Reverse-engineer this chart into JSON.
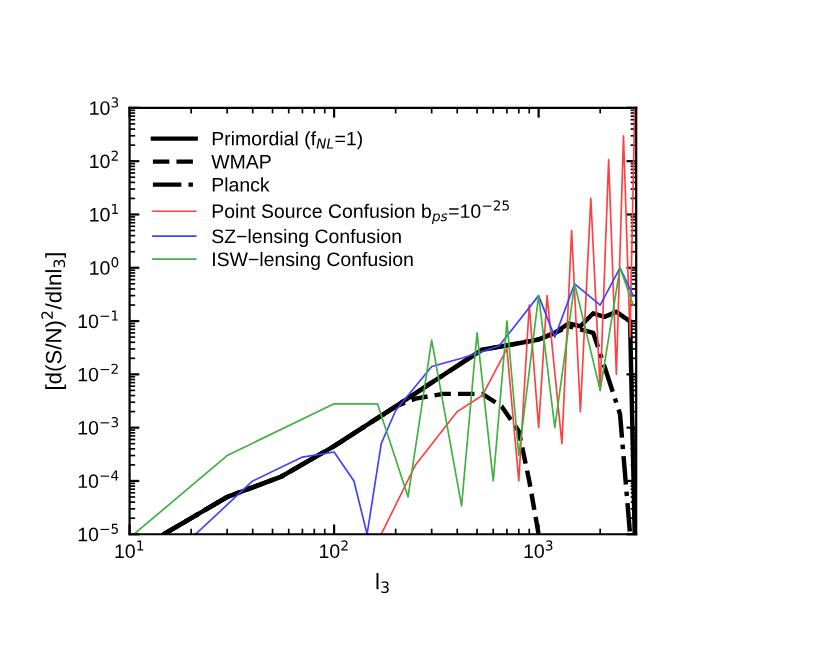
{
  "chart_data": {
    "type": "line",
    "xlabel": "l$_{3}$",
    "ylabel": "[d(S/N)$^{2}$/dlnl$_{3}$]",
    "log": "xy",
    "xlim": [
      10,
      3000
    ],
    "ylim": [
      1e-05,
      1000
    ],
    "xticks": [
      {
        "value": 10,
        "label": "10$^{1}$"
      },
      {
        "value": 100,
        "label": "10$^{2}$"
      },
      {
        "value": 1000,
        "label": "10$^{3}$"
      }
    ],
    "yticks": [
      {
        "value": 1e-05,
        "label": "10$^{−5}$"
      },
      {
        "value": 0.0001,
        "label": "10$^{−4}$"
      },
      {
        "value": 0.001,
        "label": "10$^{−3}$"
      },
      {
        "value": 0.01,
        "label": "10$^{−2}$"
      },
      {
        "value": 0.1,
        "label": "10$^{−1}$"
      },
      {
        "value": 1,
        "label": "10$^{0}$"
      },
      {
        "value": 10,
        "label": "10$^{1}$"
      },
      {
        "value": 100,
        "label": "10$^{2}$"
      },
      {
        "value": 1000,
        "label": "10$^{3}$"
      }
    ],
    "grid": false,
    "legend": "top left",
    "marker": "none",
    "series": [
      {
        "name": "Primordial (f$_{NL}$=1)",
        "color": "#000000",
        "line_style": "solid",
        "x": [
          14.7,
          30,
          55,
          100,
          200,
          300,
          530,
          700,
          1000,
          1200,
          1400,
          1600,
          1850,
          2100,
          2400,
          2600,
          2800,
          2950
        ],
        "values": [
          1e-05,
          5e-05,
          0.00012,
          0.00045,
          0.0025,
          0.007,
          0.029,
          0.035,
          0.045,
          0.06,
          0.09,
          0.08,
          0.14,
          0.12,
          0.15,
          0.12,
          0.1,
          1e-05
        ]
      },
      {
        "name": "WMAP",
        "color": "#000000",
        "line_style": "dashed",
        "x": [
          14.7,
          30,
          55,
          100,
          200,
          250,
          340,
          530,
          660,
          800,
          900,
          1000
        ],
        "values": [
          1e-05,
          5e-05,
          0.00012,
          0.00045,
          0.0025,
          0.0035,
          0.0043,
          0.0043,
          0.0025,
          0.00086,
          0.0001,
          1e-05
        ]
      },
      {
        "name": "Planck",
        "color": "#000000",
        "line_style": "dashed-dotted",
        "x": [
          14.7,
          30,
          55,
          100,
          200,
          300,
          530,
          700,
          1000,
          1200,
          1400,
          1600,
          1850,
          2100,
          2500,
          2800
        ],
        "values": [
          1e-05,
          5e-05,
          0.00012,
          0.00045,
          0.0025,
          0.007,
          0.029,
          0.035,
          0.045,
          0.06,
          0.08,
          0.07,
          0.06,
          0.014,
          0.0018,
          1e-05
        ]
      },
      {
        "name": "Point Source Confusion b$_{ps}$=10$^{−25}$",
        "color": "#ff4040",
        "line_style": "solid",
        "x": [
          170,
          250,
          400,
          530,
          700,
          800,
          900,
          1000,
          1100,
          1300,
          1450,
          1600,
          1800,
          2000,
          2200,
          2400,
          2600,
          2800,
          2950
        ],
        "values": [
          1e-05,
          0.0002,
          0.002,
          0.004,
          0.03,
          0.0001,
          0.2,
          0.001,
          0.3,
          0.0005,
          5,
          0.002,
          20,
          0.005,
          107,
          0.01,
          300,
          0.05,
          1000
        ]
      },
      {
        "name": "SZ−lensing Confusion",
        "color": "#4040ff",
        "line_style": "solid",
        "x": [
          21,
          40,
          70,
          100,
          125,
          145,
          170,
          200,
          300,
          420,
          640,
          800,
          1000,
          1200,
          1500,
          2000,
          2500,
          2900
        ],
        "values": [
          1e-05,
          0.0001,
          0.00028,
          0.00035,
          0.0001,
          1e-05,
          0.0005,
          0.0021,
          0.014,
          0.02,
          0.034,
          0.1,
          0.3,
          0.05,
          0.5,
          0.2,
          1,
          0.3
        ]
      },
      {
        "name": "ISW−lensing Confusion",
        "color": "#40b040",
        "line_style": "solid",
        "x": [
          10.5,
          30,
          100,
          163,
          230,
          300,
          420,
          500,
          600,
          700,
          800,
          1000,
          1200,
          1500,
          2000,
          2500,
          2900
        ],
        "values": [
          1e-05,
          0.0003,
          0.0028,
          0.0028,
          5e-05,
          0.044,
          3.4e-05,
          0.06,
          0.0001,
          0.1,
          0.0003,
          0.3,
          0.001,
          0.5,
          0.005,
          1,
          0.2
        ]
      }
    ]
  }
}
